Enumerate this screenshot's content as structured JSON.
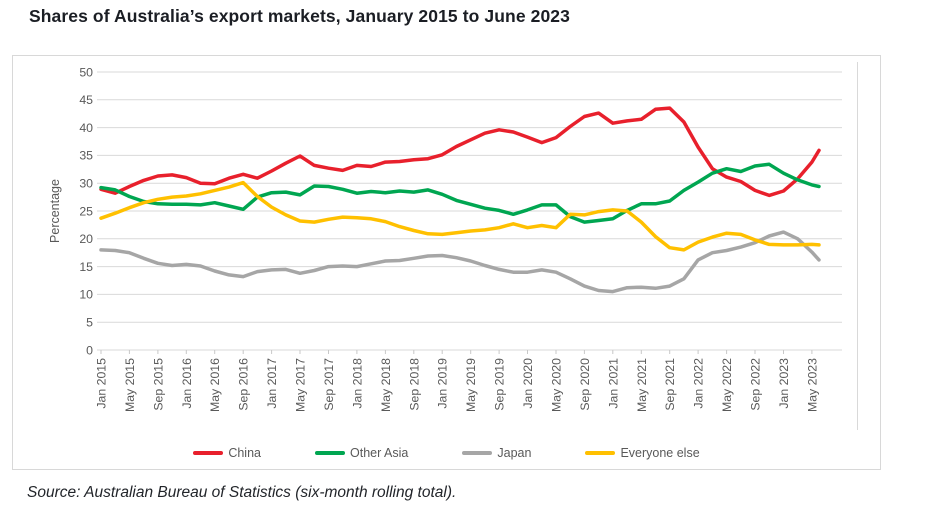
{
  "page": {
    "title": "Shares of Australia’s export markets, January 2015 to June 2023",
    "source": "Source: Australian Bureau of Statistics (six-month rolling total)."
  },
  "chart_data": {
    "type": "line",
    "title": "Shares of Australia’s export markets, January 2015 to June 2023",
    "xlabel": "",
    "ylabel": "Percentage",
    "ylim": [
      0,
      50
    ],
    "ytick_step": 5,
    "grid": true,
    "legend_position": "bottom",
    "grid_color": "#d9d9d9",
    "axis_text_color": "#595959",
    "x_tick_interval_months": 4,
    "x_tick_labels": [
      "Jan 2015",
      "May 2015",
      "Sep 2015",
      "Jan 2016",
      "May 2016",
      "Sep 2016",
      "Jan 2017",
      "May 2017",
      "Sep 2017",
      "Jan 2018",
      "May 2018",
      "Sep 2018",
      "Jan 2019",
      "May 2019",
      "Sep 2019",
      "Jan 2020",
      "May 2020",
      "Sep 2020",
      "Jan 2021",
      "May 2021",
      "Sep 2021",
      "Jan 2022",
      "May 2022",
      "Sep 2022",
      "Jan 2023",
      "May 2023"
    ],
    "months_sampled": [
      0,
      2,
      4,
      6,
      8,
      10,
      12,
      14,
      16,
      18,
      20,
      22,
      24,
      26,
      28,
      30,
      32,
      34,
      36,
      38,
      40,
      42,
      44,
      46,
      48,
      50,
      52,
      54,
      56,
      58,
      60,
      62,
      64,
      66,
      68,
      70,
      72,
      74,
      76,
      78,
      80,
      82,
      84,
      86,
      88,
      90,
      92,
      94,
      96,
      98,
      100,
      101
    ],
    "series": [
      {
        "name": "China",
        "color": "#e8202c",
        "values": [
          28.9,
          28.2,
          29.4,
          30.5,
          31.3,
          31.5,
          31.0,
          30.0,
          29.9,
          30.9,
          31.6,
          30.9,
          32.2,
          33.6,
          34.9,
          33.2,
          32.7,
          32.3,
          33.2,
          33.0,
          33.8,
          33.9,
          34.2,
          34.4,
          35.1,
          36.6,
          37.8,
          39.0,
          39.6,
          39.2,
          38.3,
          37.3,
          38.2,
          40.2,
          42.0,
          42.6,
          40.8,
          41.2,
          41.5,
          43.3,
          43.5,
          41.0,
          36.5,
          32.6,
          31.1,
          30.3,
          28.7,
          27.8,
          28.6,
          30.8,
          33.8,
          35.9
        ]
      },
      {
        "name": "Other Asia",
        "color": "#00a651",
        "values": [
          29.2,
          28.8,
          27.6,
          26.7,
          26.3,
          26.2,
          26.2,
          26.1,
          26.5,
          25.9,
          25.3,
          27.5,
          28.3,
          28.4,
          27.9,
          29.5,
          29.4,
          28.9,
          28.2,
          28.5,
          28.3,
          28.6,
          28.4,
          28.8,
          28.0,
          26.9,
          26.2,
          25.5,
          25.1,
          24.4,
          25.2,
          26.1,
          26.1,
          24.0,
          23.0,
          23.3,
          23.6,
          25.1,
          26.3,
          26.3,
          26.8,
          28.7,
          30.2,
          31.8,
          32.6,
          32.1,
          33.1,
          33.4,
          31.8,
          30.6,
          29.7,
          29.4
        ]
      },
      {
        "name": "Japan",
        "color": "#a6a6a6",
        "values": [
          18.0,
          17.9,
          17.5,
          16.5,
          15.6,
          15.2,
          15.4,
          15.1,
          14.2,
          13.5,
          13.2,
          14.1,
          14.4,
          14.5,
          13.8,
          14.3,
          15.0,
          15.1,
          15.0,
          15.5,
          16.0,
          16.1,
          16.5,
          16.9,
          17.0,
          16.6,
          16.0,
          15.2,
          14.5,
          14.0,
          14.0,
          14.4,
          14.0,
          12.8,
          11.5,
          10.7,
          10.5,
          11.2,
          11.3,
          11.1,
          11.5,
          12.8,
          16.2,
          17.5,
          17.9,
          18.5,
          19.3,
          20.5,
          21.2,
          20.0,
          17.6,
          16.2
        ]
      },
      {
        "name": "Everyone else",
        "color": "#ffc000",
        "values": [
          23.7,
          24.6,
          25.6,
          26.5,
          27.1,
          27.5,
          27.7,
          28.1,
          28.7,
          29.3,
          30.1,
          27.6,
          25.7,
          24.3,
          23.2,
          23.0,
          23.5,
          23.9,
          23.8,
          23.6,
          23.1,
          22.2,
          21.5,
          20.9,
          20.8,
          21.1,
          21.4,
          21.6,
          22.0,
          22.7,
          22.0,
          22.4,
          22.0,
          24.4,
          24.3,
          24.9,
          25.2,
          25.0,
          23.0,
          20.4,
          18.4,
          18.0,
          19.4,
          20.3,
          21.0,
          20.8,
          19.8,
          19.0,
          18.9,
          18.9,
          19.0,
          18.9
        ]
      }
    ]
  }
}
